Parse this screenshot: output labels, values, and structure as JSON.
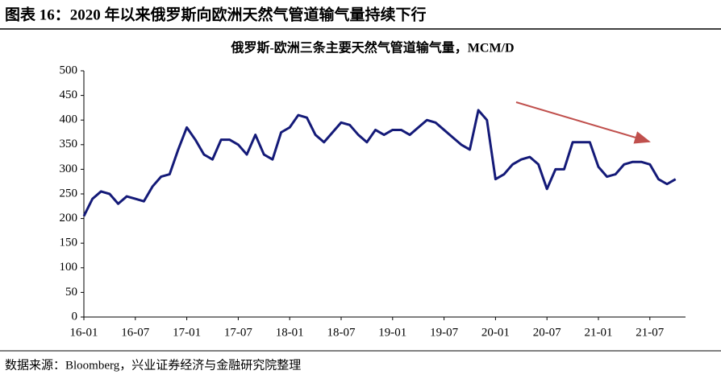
{
  "header": {
    "title": "图表 16：2020 年以来俄罗斯向欧洲天然气管道输气量持续下行"
  },
  "chart_data": {
    "type": "line",
    "title": "俄罗斯-欧洲三条主要天然气管道输气量，MCM/D",
    "x": [
      "16-01",
      "16-02",
      "16-03",
      "16-04",
      "16-05",
      "16-06",
      "16-07",
      "16-08",
      "16-09",
      "16-10",
      "16-11",
      "16-12",
      "17-01",
      "17-02",
      "17-03",
      "17-04",
      "17-05",
      "17-06",
      "17-07",
      "17-08",
      "17-09",
      "17-10",
      "17-11",
      "17-12",
      "18-01",
      "18-02",
      "18-03",
      "18-04",
      "18-05",
      "18-06",
      "18-07",
      "18-08",
      "18-09",
      "18-10",
      "18-11",
      "18-12",
      "19-01",
      "19-02",
      "19-03",
      "19-04",
      "19-05",
      "19-06",
      "19-07",
      "19-08",
      "19-09",
      "19-10",
      "19-11",
      "19-12",
      "20-01",
      "20-02",
      "20-03",
      "20-04",
      "20-05",
      "20-06",
      "20-07",
      "20-08",
      "20-09",
      "20-10",
      "20-11",
      "20-12",
      "21-01",
      "21-02",
      "21-03",
      "21-04",
      "21-05",
      "21-06",
      "21-07",
      "21-08",
      "21-09",
      "21-10"
    ],
    "series": [
      {
        "color": "#141a78",
        "values": [
          205,
          240,
          255,
          250,
          230,
          245,
          240,
          235,
          265,
          285,
          290,
          340,
          385,
          360,
          330,
          320,
          360,
          360,
          350,
          330,
          370,
          330,
          320,
          375,
          385,
          410,
          405,
          370,
          355,
          375,
          395,
          390,
          370,
          355,
          380,
          370,
          380,
          380,
          370,
          385,
          400,
          395,
          380,
          365,
          350,
          340,
          420,
          400,
          280,
          290,
          310,
          320,
          325,
          310,
          260,
          300,
          300,
          355,
          355,
          355,
          305,
          285,
          290,
          310,
          315,
          315,
          310,
          280,
          270,
          280
        ]
      }
    ],
    "xticks": [
      "16-01",
      "16-07",
      "17-01",
      "17-07",
      "18-01",
      "18-07",
      "19-01",
      "19-07",
      "20-01",
      "20-07",
      "21-01",
      "21-07"
    ],
    "ylim": [
      0,
      500
    ],
    "yticks": [
      0,
      50,
      100,
      150,
      200,
      250,
      300,
      350,
      400,
      450,
      500
    ]
  },
  "footer": {
    "source": "数据来源：Bloomberg，兴业证券经济与金融研究院整理"
  }
}
